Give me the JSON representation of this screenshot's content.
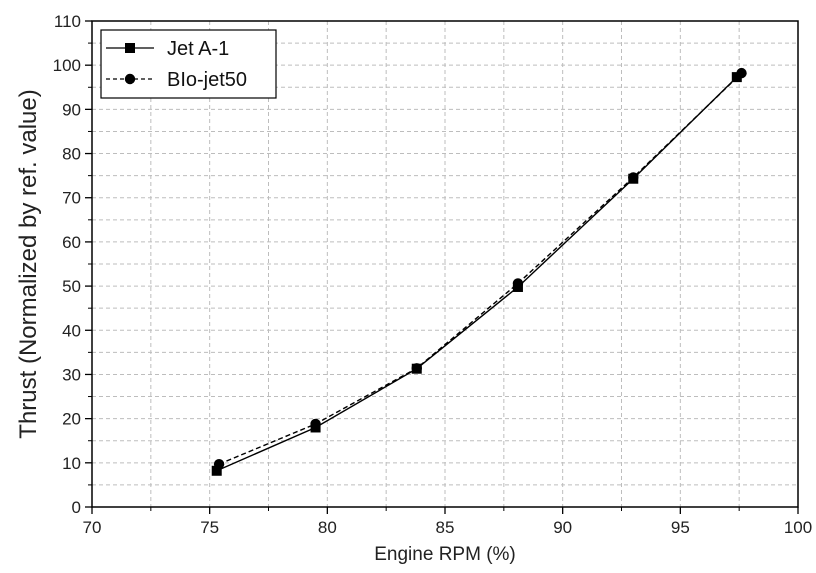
{
  "chart_data": {
    "type": "line",
    "title": "",
    "xlabel": "Engine RPM (%)",
    "ylabel": "Thrust (Normalized by ref. value)",
    "xlim": [
      70,
      100
    ],
    "ylim": [
      0,
      110
    ],
    "x_major_ticks": [
      70,
      75,
      80,
      85,
      90,
      95,
      100
    ],
    "x_tick_labels": [
      "70",
      "75",
      "80",
      "85",
      "90",
      "95",
      "100"
    ],
    "y_major_ticks": [
      0,
      10,
      20,
      30,
      40,
      50,
      60,
      70,
      80,
      90,
      100,
      110
    ],
    "y_tick_labels": [
      "0",
      "10",
      "20",
      "30",
      "40",
      "50",
      "60",
      "70",
      "80",
      "90",
      "100",
      "110"
    ],
    "grid": true,
    "grid_style": "dashed",
    "legend_position": "top-left",
    "series": [
      {
        "name": "Jet A-1",
        "marker": "square",
        "line_style": "solid",
        "color": "#000000",
        "x": [
          75.3,
          79.5,
          83.8,
          88.1,
          93.0,
          97.4
        ],
        "y": [
          8.2,
          18.0,
          31.3,
          49.8,
          74.3,
          97.3
        ]
      },
      {
        "name": "BIo-jet50",
        "marker": "circle",
        "line_style": "dashed",
        "color": "#000000",
        "x": [
          75.4,
          79.5,
          83.8,
          88.1,
          93.0,
          97.6
        ],
        "y": [
          9.7,
          18.8,
          31.4,
          50.6,
          74.6,
          98.2
        ]
      }
    ]
  }
}
